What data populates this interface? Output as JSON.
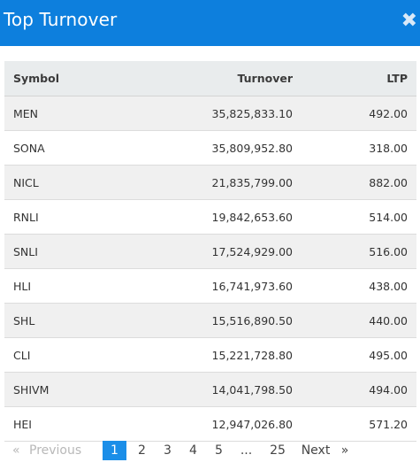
{
  "header": {
    "title": "Top Turnover",
    "close": "✖"
  },
  "table": {
    "columns": [
      "Symbol",
      "Turnover",
      "LTP"
    ],
    "rows": [
      {
        "symbol": "MEN",
        "turnover": "35,825,833.10",
        "ltp": "492.00"
      },
      {
        "symbol": "SONA",
        "turnover": "35,809,952.80",
        "ltp": "318.00"
      },
      {
        "symbol": "NICL",
        "turnover": "21,835,799.00",
        "ltp": "882.00"
      },
      {
        "symbol": "RNLI",
        "turnover": "19,842,653.60",
        "ltp": "514.00"
      },
      {
        "symbol": "SNLI",
        "turnover": "17,524,929.00",
        "ltp": "516.00"
      },
      {
        "symbol": "HLI",
        "turnover": "16,741,973.60",
        "ltp": "438.00"
      },
      {
        "symbol": "SHL",
        "turnover": "15,516,890.50",
        "ltp": "440.00"
      },
      {
        "symbol": "CLI",
        "turnover": "15,221,728.80",
        "ltp": "495.00"
      },
      {
        "symbol": "SHIVM",
        "turnover": "14,041,798.50",
        "ltp": "494.00"
      },
      {
        "symbol": "HEI",
        "turnover": "12,947,026.80",
        "ltp": "571.20"
      }
    ]
  },
  "pagination": {
    "prev_arrow": "«",
    "prev_label": "Previous",
    "pages": [
      "1",
      "2",
      "3",
      "4",
      "5"
    ],
    "ellipsis": "...",
    "last_page": "25",
    "next_label": "Next",
    "next_arrow": "»",
    "current": "1"
  },
  "colors": {
    "header_bg": "#0d7fdd",
    "active_page": "#1b8ee8",
    "row_stripe": "#f0f0f0",
    "table_head_bg": "#e9eced"
  }
}
